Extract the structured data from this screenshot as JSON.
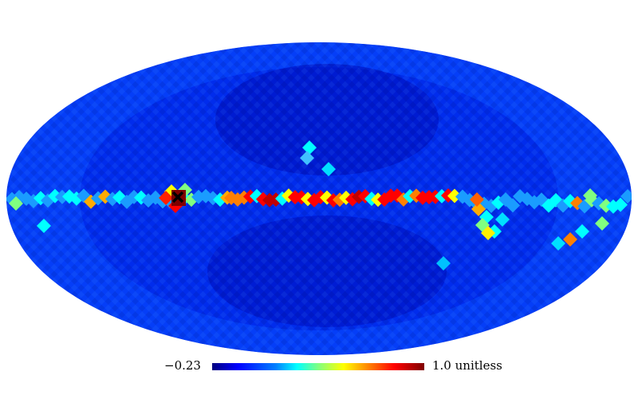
{
  "map": {
    "projection": "mollweide",
    "colormap": "jet",
    "background_color": "#0022ee",
    "features": [
      {
        "name": "galactic-plane-band",
        "color": "#ff2000"
      },
      {
        "name": "bright-source-left",
        "color": "#7f0000"
      },
      {
        "name": "marker-cross",
        "color": "#000000"
      }
    ]
  },
  "colorbar": {
    "min_label": "−0.23",
    "max_label": "1.0",
    "unit_label": "unitless",
    "colormap": "jet"
  }
}
